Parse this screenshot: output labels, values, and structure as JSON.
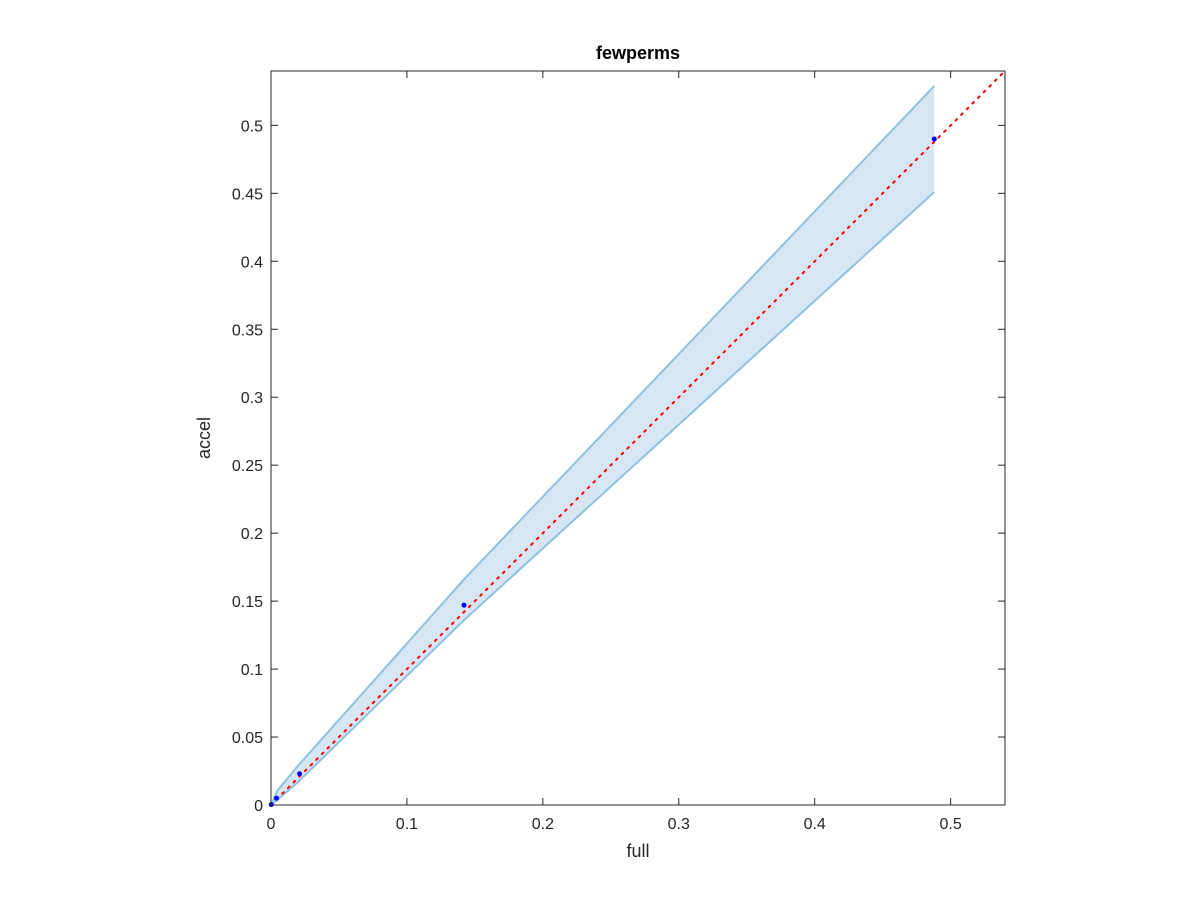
{
  "chart_data": {
    "type": "scatter",
    "title": "fewperms",
    "xlabel": "full",
    "ylabel": "accel",
    "xlim": [
      0,
      0.54
    ],
    "ylim": [
      0,
      0.54
    ],
    "xticks": [
      0,
      0.1,
      0.2,
      0.3,
      0.4,
      0.5
    ],
    "xtick_labels": [
      "0",
      "0.1",
      "0.2",
      "0.3",
      "0.4",
      "0.5"
    ],
    "yticks": [
      0,
      0.05,
      0.1,
      0.15,
      0.2,
      0.25,
      0.3,
      0.35,
      0.4,
      0.45,
      0.5
    ],
    "ytick_labels": [
      "0",
      "0.05",
      "0.1",
      "0.15",
      "0.2",
      "0.25",
      "0.3",
      "0.35",
      "0.4",
      "0.45",
      "0.5"
    ],
    "grid": false,
    "series": [
      {
        "kind": "points",
        "x": [
          0.0002,
          0.004,
          0.021,
          0.142,
          0.488
        ],
        "y": [
          0.0003,
          0.005,
          0.023,
          0.147,
          0.49
        ]
      },
      {
        "kind": "band",
        "x": [
          0,
          0.005,
          0.02,
          0.142,
          0.488
        ],
        "lower": [
          0,
          0.004,
          0.017,
          0.136,
          0.451
        ],
        "upper": [
          0,
          0.011,
          0.029,
          0.166,
          0.529
        ]
      },
      {
        "kind": "reference-line",
        "x": [
          0,
          0.54
        ],
        "y": [
          0,
          0.54
        ]
      }
    ],
    "colors": {
      "points": "#0000ff",
      "band_fill": "#d6e6f3",
      "band_edge": "#8fc1e0",
      "reference_line": "#ff0000",
      "axes": "#262626"
    }
  }
}
